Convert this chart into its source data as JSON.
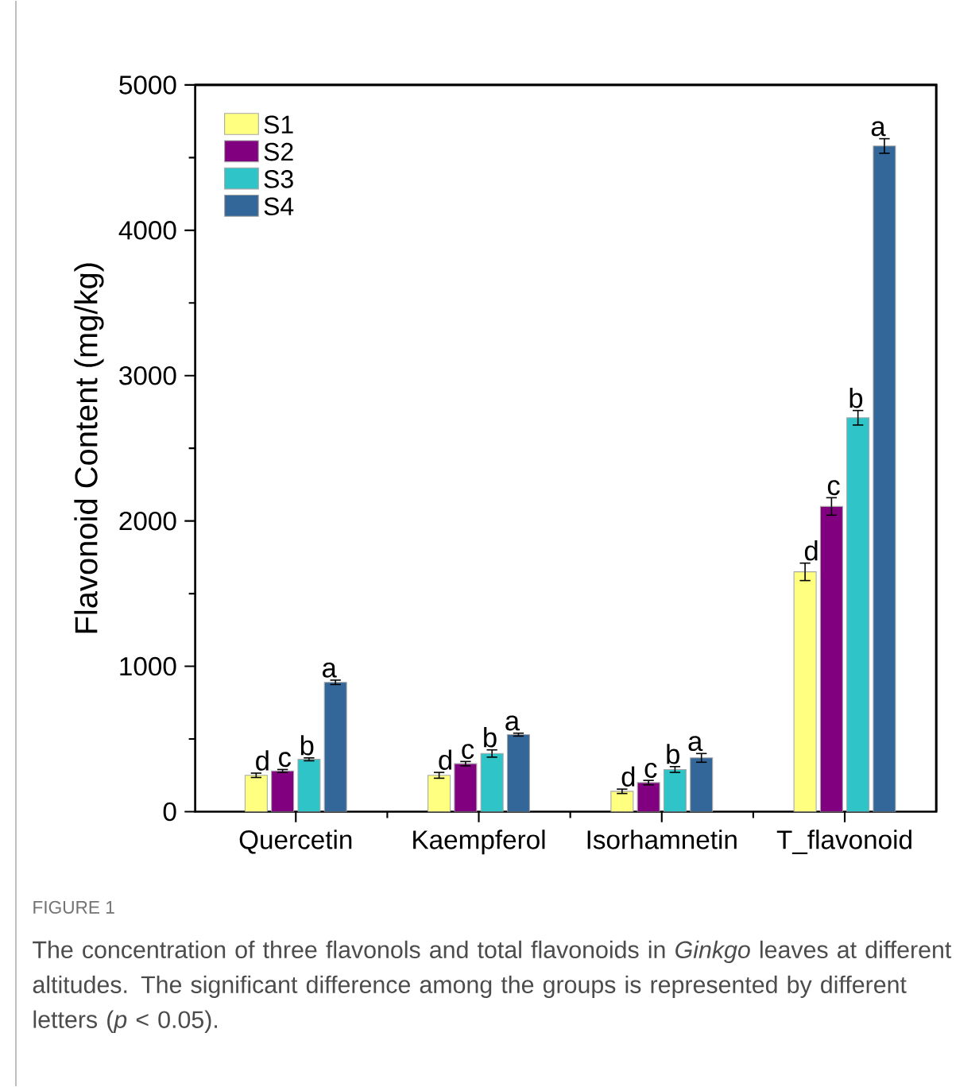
{
  "chart_data": {
    "type": "bar",
    "ylabel": "Flavonoid Content (mg/kg)",
    "categories": [
      "Quercetin",
      "Kaempferol",
      "Isorhamnetin",
      "T_flavonoid"
    ],
    "series": [
      {
        "name": "S1",
        "color": "#ffff80",
        "values": [
          250,
          250,
          140,
          1650
        ],
        "errors": [
          15,
          20,
          15,
          60
        ],
        "value_labels": [
          "d",
          "d",
          "d",
          "d"
        ]
      },
      {
        "name": "S2",
        "color": "#800080",
        "values": [
          280,
          330,
          200,
          2100
        ],
        "errors": [
          10,
          15,
          15,
          60
        ],
        "value_labels": [
          "c",
          "c",
          "c",
          "c"
        ]
      },
      {
        "name": "S3",
        "color": "#2ec4c8",
        "values": [
          360,
          400,
          290,
          2710
        ],
        "errors": [
          10,
          25,
          20,
          50
        ],
        "value_labels": [
          "b",
          "b",
          "b",
          "b"
        ]
      },
      {
        "name": "S4",
        "color": "#336699",
        "values": [
          890,
          530,
          370,
          4580
        ],
        "errors": [
          15,
          10,
          30,
          50
        ],
        "value_labels": [
          "a",
          "a",
          "a",
          "a"
        ]
      }
    ],
    "ylim": [
      0,
      5000
    ],
    "yticks": [
      0,
      1000,
      2000,
      3000,
      4000,
      5000
    ],
    "legend": "top left",
    "annotations": [
      "FIGURE 1",
      "The concentration of three flavonols and total flavonoids in *Ginkgo* leaves at different altitudes. The significant difference among the groups is represented by different letters (*p* < 0.05)."
    ]
  }
}
